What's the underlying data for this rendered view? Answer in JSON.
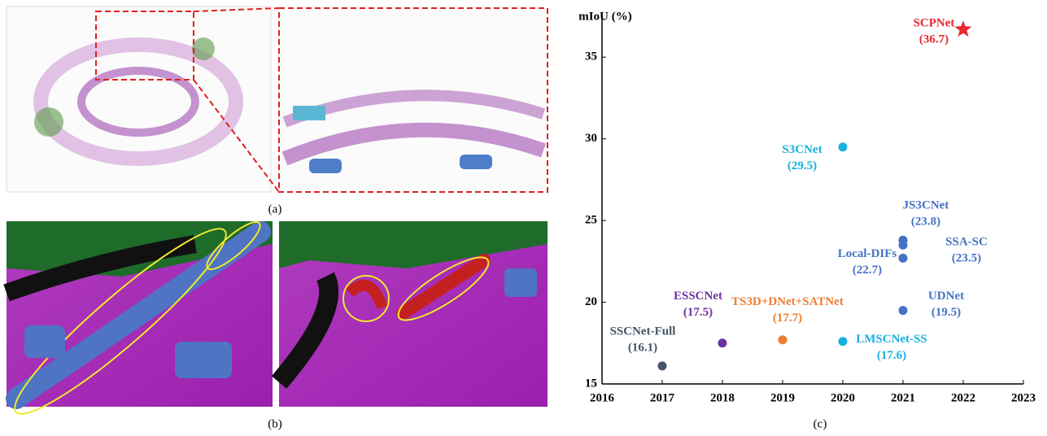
{
  "captions": [
    "(a)",
    "(b)",
    "(c)"
  ],
  "chart_data": {
    "type": "scatter",
    "ylabel": "mIoU (%)",
    "xlim": [
      2016,
      2023
    ],
    "xticks": [
      2016,
      2017,
      2018,
      2019,
      2020,
      2021,
      2022,
      2023
    ],
    "ylim": [
      15,
      37.5
    ],
    "yticks": [
      15,
      20,
      25,
      30,
      35
    ],
    "series": [
      {
        "name": "SCPNet",
        "color": "#e8262e",
        "marker": "star",
        "x": [
          2022
        ],
        "values": [
          36.7
        ],
        "value_labels": [
          "(36.7)"
        ]
      },
      {
        "name": "S3CNet",
        "color": "#1ab0e0",
        "marker": "circle",
        "x": [
          2020
        ],
        "values": [
          29.5
        ],
        "value_labels": [
          "(29.5)"
        ]
      },
      {
        "name": "JS3CNet",
        "color": "#4472c4",
        "marker": "circle",
        "x": [
          2021
        ],
        "values": [
          23.8
        ],
        "value_labels": [
          "(23.8)"
        ]
      },
      {
        "name": "SSA-SC",
        "color": "#4472c4",
        "marker": "circle",
        "x": [
          2021
        ],
        "values": [
          23.5
        ],
        "value_labels": [
          "(23.5)"
        ]
      },
      {
        "name": "Local-DIFs",
        "color": "#4472c4",
        "marker": "circle",
        "x": [
          2021
        ],
        "values": [
          22.7
        ],
        "value_labels": [
          "(22.7)"
        ]
      },
      {
        "name": "UDNet",
        "color": "#4472c4",
        "marker": "circle",
        "x": [
          2021
        ],
        "values": [
          19.5
        ],
        "value_labels": [
          "(19.5)"
        ]
      },
      {
        "name": "LMSCNet-SS",
        "color": "#1ab0e0",
        "marker": "circle",
        "x": [
          2020
        ],
        "values": [
          17.6
        ],
        "value_labels": [
          "(17.6)"
        ]
      },
      {
        "name": "TS3D+DNet+SATNet",
        "color": "#ed7d31",
        "marker": "circle",
        "x": [
          2019
        ],
        "values": [
          17.7
        ],
        "value_labels": [
          "(17.7)"
        ]
      },
      {
        "name": "ESSCNet",
        "color": "#7030a0",
        "marker": "circle",
        "x": [
          2018
        ],
        "values": [
          17.5
        ],
        "value_labels": [
          "(17.5)"
        ]
      },
      {
        "name": "SSCNet-Full",
        "color": "#44546a",
        "marker": "circle",
        "x": [
          2017
        ],
        "values": [
          16.1
        ],
        "value_labels": [
          "(16.1)"
        ]
      }
    ]
  }
}
